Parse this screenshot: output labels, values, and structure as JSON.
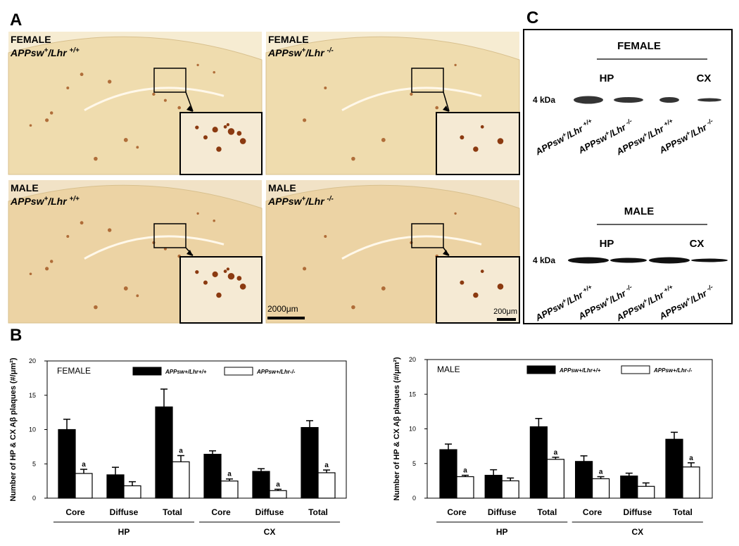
{
  "panels": [
    "A",
    "B",
    "C"
  ],
  "genotypes": [
    [
      "APPsw",
      "+",
      "/Lhr ",
      "+/+"
    ],
    [
      "APPsw",
      "+",
      "/Lhr ",
      "-/-"
    ]
  ],
  "micrographs": {
    "sex": [
      "FEMALE",
      "MALE"
    ],
    "scale_bars": [
      "2000μm",
      "200μm"
    ]
  },
  "blot": {
    "regions": [
      "HP",
      "CX"
    ],
    "marker": "4 kDa"
  },
  "chart_data": [
    {
      "type": "bar",
      "title": "FEMALE",
      "y_label": "Number of HP & CX Aβ plaques (#/μm²)",
      "categories": [
        "Core",
        "Diffuse",
        "Total",
        "Core",
        "Diffuse",
        "Total"
      ],
      "groups": [
        "HP",
        "CX"
      ],
      "ylim": [
        0,
        20
      ],
      "yticks": [
        0,
        5,
        10,
        15,
        20
      ],
      "grid": false,
      "series": [
        {
          "name": "APPsw+/Lhr+/+",
          "color": "#000000",
          "values": [
            10,
            3.4,
            13.3,
            6.4,
            3.9,
            10.3
          ],
          "errors": [
            1.5,
            1.1,
            2.6,
            0.5,
            0.4,
            1.0
          ]
        },
        {
          "name": "APPsw+/Lhr-/-",
          "color": "#ffffff",
          "values": [
            3.6,
            1.8,
            5.3,
            2.5,
            1.1,
            3.7
          ],
          "errors": [
            0.6,
            0.6,
            0.9,
            0.3,
            0.2,
            0.4
          ],
          "flags": [
            "a",
            null,
            "a",
            "a",
            "a",
            "a"
          ]
        }
      ]
    },
    {
      "type": "bar",
      "title": "MALE",
      "y_label": "Number of HP & CX Aβ plaques (#/μm²)",
      "categories": [
        "Core",
        "Diffuse",
        "Total",
        "Core",
        "Diffuse",
        "Total"
      ],
      "groups": [
        "HP",
        "CX"
      ],
      "ylim": [
        0,
        20
      ],
      "yticks": [
        0,
        5,
        10,
        15,
        20
      ],
      "grid": false,
      "series": [
        {
          "name": "APPsw+/Lhr+/+",
          "color": "#000000",
          "values": [
            7.0,
            3.3,
            10.3,
            5.3,
            3.2,
            8.5
          ],
          "errors": [
            0.8,
            0.8,
            1.2,
            0.8,
            0.4,
            1.0
          ]
        },
        {
          "name": "APPsw+/Lhr-/-",
          "color": "#ffffff",
          "values": [
            3.1,
            2.5,
            5.6,
            2.8,
            1.7,
            4.5
          ],
          "errors": [
            0.2,
            0.4,
            0.3,
            0.3,
            0.5,
            0.6
          ],
          "flags": [
            "a",
            null,
            "a",
            "a",
            null,
            "a"
          ]
        }
      ]
    }
  ]
}
